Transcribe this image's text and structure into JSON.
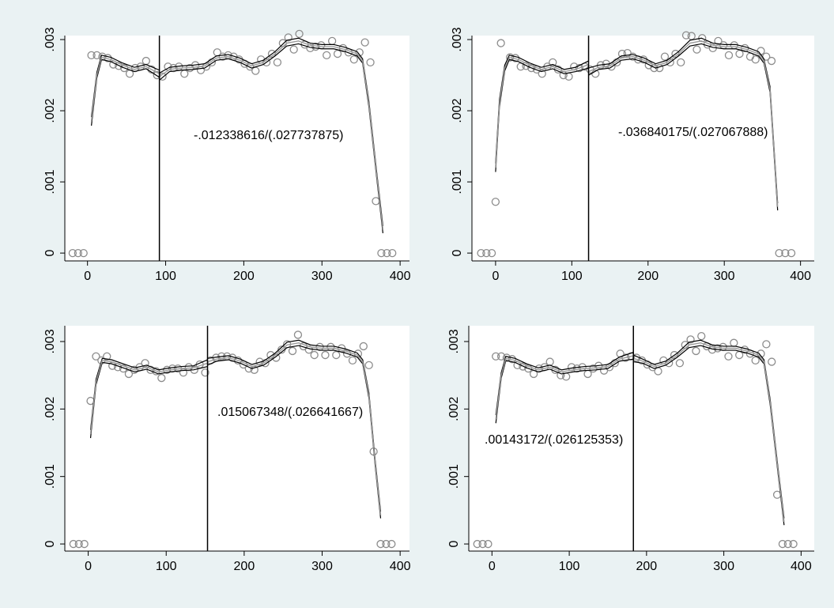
{
  "chart_data": [
    {
      "type": "scatter",
      "xlim": [
        -29,
        412
      ],
      "ylim": [
        -0.00011,
        0.003056
      ],
      "xticks": [
        0,
        100,
        200,
        300,
        400
      ],
      "yticks": [
        0,
        {
          "value": 0.001,
          "label": ".001"
        },
        {
          "value": 0.002,
          "label": ".002"
        },
        {
          "value": 0.003,
          "label": ".003"
        }
      ],
      "cutoff": 92,
      "annotation": "-.012338616/(.027737875)",
      "points": {
        "color": "#8c8c8c",
        "x": [
          -19,
          -12,
          -5,
          5,
          12,
          19,
          26,
          33,
          40,
          47,
          54,
          61,
          68,
          75,
          82,
          89,
          96,
          103,
          110,
          117,
          124,
          131,
          138,
          145,
          152,
          159,
          166,
          173,
          180,
          187,
          194,
          201,
          208,
          215,
          222,
          229,
          236,
          243,
          250,
          257,
          264,
          271,
          278,
          285,
          292,
          299,
          306,
          313,
          320,
          327,
          334,
          341,
          348,
          355,
          362,
          369,
          376,
          383,
          390
        ],
        "values": [
          0,
          0,
          0,
          0.00278,
          0.00278,
          0.00276,
          0.00274,
          0.00265,
          0.00263,
          0.0026,
          0.00252,
          0.0026,
          0.00262,
          0.0027,
          0.00258,
          0.0025,
          0.00248,
          0.00262,
          0.0026,
          0.00262,
          0.00252,
          0.0026,
          0.00264,
          0.00257,
          0.00262,
          0.00268,
          0.00282,
          0.00276,
          0.00278,
          0.00276,
          0.00272,
          0.00266,
          0.00262,
          0.00256,
          0.00272,
          0.00268,
          0.0028,
          0.00268,
          0.00295,
          0.00303,
          0.00286,
          0.00308,
          0.00293,
          0.00288,
          0.0029,
          0.00292,
          0.00278,
          0.00298,
          0.0028,
          0.00288,
          0.00282,
          0.00272,
          0.00282,
          0.00296,
          0.00268,
          0.00073,
          0,
          0,
          0
        ]
      },
      "fits": [
        {
          "color": "#000000",
          "x": [
            5,
            12,
            18,
            30,
            45,
            60,
            75,
            92
          ],
          "values": [
            0.00185,
            0.0025,
            0.00275,
            0.00272,
            0.00264,
            0.00258,
            0.00262,
            0.00252
          ],
          "errors": [
            6e-05,
            4e-05,
            3e-05,
            3e-05,
            3e-05,
            3e-05,
            3e-05,
            5e-05
          ]
        },
        {
          "color": "#000000",
          "x": [
            92,
            105,
            120,
            135,
            150,
            165,
            180,
            195,
            210,
            225,
            240,
            255,
            270,
            285,
            300,
            315,
            330,
            345,
            352,
            360,
            370,
            378
          ],
          "values": [
            0.00248,
            0.00258,
            0.0026,
            0.00261,
            0.00263,
            0.00274,
            0.00276,
            0.00271,
            0.00263,
            0.00268,
            0.0028,
            0.00295,
            0.00298,
            0.00292,
            0.0029,
            0.0029,
            0.00286,
            0.0028,
            0.0027,
            0.0021,
            0.0011,
            0.00033
          ],
          "errors": [
            5e-05,
            3e-05,
            3e-05,
            3e-05,
            3e-05,
            3e-05,
            3e-05,
            3e-05,
            3e-05,
            3e-05,
            3e-05,
            4e-05,
            4e-05,
            3e-05,
            3e-05,
            3e-05,
            3e-05,
            3e-05,
            3e-05,
            4e-05,
            4e-05,
            5e-05
          ]
        }
      ]
    },
    {
      "type": "scatter",
      "xlim": [
        -31,
        418
      ],
      "ylim": [
        -0.00011,
        0.003056
      ],
      "xticks": [
        0,
        100,
        200,
        300,
        400
      ],
      "yticks": [
        0,
        {
          "value": 0.001,
          "label": ".001"
        },
        {
          "value": 0.002,
          "label": ".002"
        },
        {
          "value": 0.003,
          "label": ".003"
        }
      ],
      "cutoff": 122,
      "annotation": "-.036840175/(.027067888)",
      "points": {
        "color": "#8c8c8c",
        "x": [
          -19,
          -12,
          -5,
          0,
          7,
          19,
          26,
          33,
          40,
          47,
          54,
          61,
          68,
          75,
          82,
          89,
          96,
          103,
          110,
          117,
          124,
          131,
          138,
          145,
          152,
          159,
          166,
          173,
          180,
          187,
          194,
          201,
          208,
          215,
          222,
          229,
          236,
          243,
          250,
          257,
          264,
          271,
          278,
          285,
          292,
          299,
          306,
          313,
          320,
          327,
          334,
          341,
          348,
          355,
          362,
          372,
          380,
          388
        ],
        "values": [
          0,
          0,
          0,
          0.00072,
          0.00295,
          0.00275,
          0.00274,
          0.00262,
          0.00263,
          0.0026,
          0.00258,
          0.00252,
          0.00262,
          0.00268,
          0.00258,
          0.0025,
          0.00248,
          0.00262,
          0.0026,
          0.00262,
          0.00258,
          0.00252,
          0.00264,
          0.00266,
          0.00262,
          0.00268,
          0.0028,
          0.00281,
          0.00276,
          0.00272,
          0.00272,
          0.00264,
          0.0026,
          0.0026,
          0.00276,
          0.00268,
          0.0028,
          0.00268,
          0.00306,
          0.00305,
          0.00286,
          0.00302,
          0.00293,
          0.00288,
          0.00298,
          0.00292,
          0.00278,
          0.00292,
          0.0028,
          0.00288,
          0.00276,
          0.00272,
          0.00284,
          0.00276,
          0.0027,
          0,
          0,
          0
        ]
      },
      "fits": [
        {
          "color": "#000000",
          "x": [
            0,
            5,
            12,
            18,
            30,
            45,
            60,
            75,
            90,
            105,
            122
          ],
          "values": [
            0.0012,
            0.0021,
            0.0026,
            0.00275,
            0.00272,
            0.00264,
            0.00258,
            0.00262,
            0.00255,
            0.00258,
            0.00265
          ],
          "errors": [
            6e-05,
            5e-05,
            4e-05,
            3e-05,
            3e-05,
            3e-05,
            3e-05,
            3e-05,
            3e-05,
            3e-05,
            5e-05
          ]
        },
        {
          "color": "#000000",
          "x": [
            122,
            135,
            150,
            165,
            180,
            195,
            210,
            225,
            240,
            255,
            270,
            285,
            300,
            315,
            330,
            345,
            352,
            360,
            370
          ],
          "values": [
            0.00255,
            0.00261,
            0.00263,
            0.00274,
            0.00276,
            0.00271,
            0.00263,
            0.00268,
            0.0028,
            0.00295,
            0.00298,
            0.00292,
            0.0029,
            0.0029,
            0.00286,
            0.0028,
            0.0027,
            0.0023,
            0.00065
          ],
          "errors": [
            5e-05,
            3e-05,
            3e-05,
            3e-05,
            3e-05,
            3e-05,
            3e-05,
            3e-05,
            3e-05,
            4e-05,
            4e-05,
            3e-05,
            3e-05,
            3e-05,
            3e-05,
            3e-05,
            3e-05,
            4e-05,
            5e-05
          ]
        }
      ]
    },
    {
      "type": "scatter",
      "xlim": [
        -30,
        412
      ],
      "ylim": [
        -0.000105,
        0.003234
      ],
      "xticks": [
        0,
        100,
        200,
        300,
        400
      ],
      "yticks": [
        0,
        {
          "value": 0.001,
          "label": ".001"
        },
        {
          "value": 0.002,
          "label": ".002"
        },
        {
          "value": 0.003,
          "label": ".003"
        }
      ],
      "cutoff": 153,
      "annotation": ".015067348/(.026641667)",
      "points": {
        "color": "#8c8c8c",
        "x": [
          -19,
          -12,
          -5,
          3,
          10,
          17,
          24,
          31,
          38,
          45,
          52,
          59,
          66,
          73,
          80,
          87,
          94,
          101,
          108,
          115,
          122,
          129,
          136,
          143,
          150,
          157,
          164,
          171,
          178,
          185,
          192,
          199,
          206,
          213,
          220,
          227,
          234,
          241,
          248,
          255,
          262,
          269,
          276,
          283,
          290,
          297,
          304,
          311,
          318,
          325,
          332,
          339,
          346,
          353,
          360,
          366,
          375,
          382,
          389
        ],
        "values": [
          0,
          0,
          0,
          0.00212,
          0.00278,
          0.00272,
          0.00278,
          0.00264,
          0.00262,
          0.0026,
          0.00252,
          0.00258,
          0.00262,
          0.00268,
          0.00258,
          0.00256,
          0.00246,
          0.00258,
          0.0026,
          0.0026,
          0.00254,
          0.00262,
          0.00258,
          0.00266,
          0.00254,
          0.00272,
          0.00276,
          0.00278,
          0.00278,
          0.00276,
          0.00272,
          0.00266,
          0.0026,
          0.00258,
          0.0027,
          0.00268,
          0.0028,
          0.00276,
          0.00288,
          0.00296,
          0.00286,
          0.0031,
          0.00293,
          0.00288,
          0.0028,
          0.00292,
          0.0028,
          0.00292,
          0.0028,
          0.0029,
          0.00282,
          0.00272,
          0.00282,
          0.00293,
          0.00265,
          0.00137,
          0,
          0,
          0
        ]
      },
      "fits": [
        {
          "color": "#000000",
          "x": [
            3,
            10,
            18,
            30,
            45,
            60,
            75,
            90,
            105,
            120,
            135,
            153
          ],
          "values": [
            0.00163,
            0.0024,
            0.00272,
            0.0027,
            0.00264,
            0.00258,
            0.00262,
            0.00255,
            0.00258,
            0.0026,
            0.00261,
            0.00268
          ],
          "errors": [
            6e-05,
            4e-05,
            3e-05,
            3e-05,
            3e-05,
            3e-05,
            3e-05,
            3e-05,
            3e-05,
            3e-05,
            3e-05,
            5e-05
          ]
        },
        {
          "color": "#000000",
          "x": [
            153,
            165,
            180,
            195,
            210,
            225,
            240,
            255,
            270,
            285,
            300,
            315,
            330,
            345,
            352,
            360,
            368,
            375
          ],
          "values": [
            0.0027,
            0.00274,
            0.00276,
            0.00271,
            0.00263,
            0.00268,
            0.0028,
            0.00295,
            0.00298,
            0.00292,
            0.0029,
            0.0029,
            0.00286,
            0.0028,
            0.0027,
            0.0022,
            0.0012,
            0.00043
          ],
          "errors": [
            5e-05,
            3e-05,
            3e-05,
            3e-05,
            3e-05,
            3e-05,
            3e-05,
            4e-05,
            4e-05,
            3e-05,
            3e-05,
            3e-05,
            3e-05,
            3e-05,
            3e-05,
            4e-05,
            4e-05,
            5e-05
          ]
        }
      ]
    },
    {
      "type": "scatter",
      "xlim": [
        -30,
        417
      ],
      "ylim": [
        -0.000105,
        0.003234
      ],
      "xticks": [
        0,
        100,
        200,
        300,
        400
      ],
      "yticks": [
        0,
        {
          "value": 0.001,
          "label": ".001"
        },
        {
          "value": 0.002,
          "label": ".002"
        },
        {
          "value": 0.003,
          "label": ".003"
        }
      ],
      "cutoff": 183,
      "annotation": ".00143172/(.026125353)",
      "points": {
        "color": "#8c8c8c",
        "x": [
          -19,
          -12,
          -5,
          5,
          12,
          19,
          26,
          33,
          40,
          47,
          54,
          61,
          68,
          75,
          82,
          89,
          96,
          103,
          110,
          117,
          124,
          131,
          138,
          145,
          152,
          159,
          166,
          173,
          180,
          187,
          194,
          201,
          208,
          215,
          222,
          229,
          236,
          243,
          250,
          257,
          264,
          271,
          278,
          285,
          292,
          299,
          306,
          313,
          320,
          327,
          334,
          341,
          348,
          355,
          362,
          369,
          376,
          383,
          390
        ],
        "values": [
          0,
          0,
          0,
          0.00278,
          0.00278,
          0.00276,
          0.00274,
          0.00265,
          0.00263,
          0.0026,
          0.00252,
          0.0026,
          0.00262,
          0.0027,
          0.00258,
          0.0025,
          0.00248,
          0.00262,
          0.0026,
          0.00262,
          0.00252,
          0.0026,
          0.00264,
          0.00257,
          0.00262,
          0.00268,
          0.00282,
          0.00276,
          0.00278,
          0.00276,
          0.00272,
          0.00266,
          0.00262,
          0.00256,
          0.00272,
          0.00268,
          0.0028,
          0.00268,
          0.00295,
          0.00303,
          0.00286,
          0.00308,
          0.00293,
          0.00288,
          0.0029,
          0.00292,
          0.00278,
          0.00298,
          0.0028,
          0.00288,
          0.00282,
          0.00272,
          0.00282,
          0.00296,
          0.0027,
          0.00073,
          0,
          0,
          0
        ]
      },
      "fits": [
        {
          "color": "#000000",
          "x": [
            5,
            12,
            18,
            30,
            45,
            60,
            75,
            90,
            105,
            120,
            135,
            150,
            165,
            183
          ],
          "values": [
            0.00185,
            0.0025,
            0.00275,
            0.00272,
            0.00264,
            0.00258,
            0.00262,
            0.00255,
            0.00258,
            0.0026,
            0.00261,
            0.00263,
            0.00274,
            0.00279
          ],
          "errors": [
            6e-05,
            4e-05,
            3e-05,
            3e-05,
            3e-05,
            3e-05,
            3e-05,
            3e-05,
            3e-05,
            3e-05,
            3e-05,
            3e-05,
            3e-05,
            5e-05
          ]
        },
        {
          "color": "#000000",
          "x": [
            183,
            195,
            210,
            225,
            240,
            255,
            270,
            285,
            300,
            315,
            330,
            345,
            352,
            360,
            370,
            378
          ],
          "values": [
            0.00275,
            0.00271,
            0.00263,
            0.00268,
            0.0028,
            0.00295,
            0.00298,
            0.00292,
            0.0029,
            0.0029,
            0.00286,
            0.0028,
            0.0027,
            0.0021,
            0.0011,
            0.00033
          ],
          "errors": [
            5e-05,
            3e-05,
            3e-05,
            3e-05,
            3e-05,
            4e-05,
            4e-05,
            3e-05,
            3e-05,
            3e-05,
            3e-05,
            3e-05,
            3e-05,
            4e-05,
            4e-05,
            5e-05
          ]
        }
      ]
    }
  ]
}
